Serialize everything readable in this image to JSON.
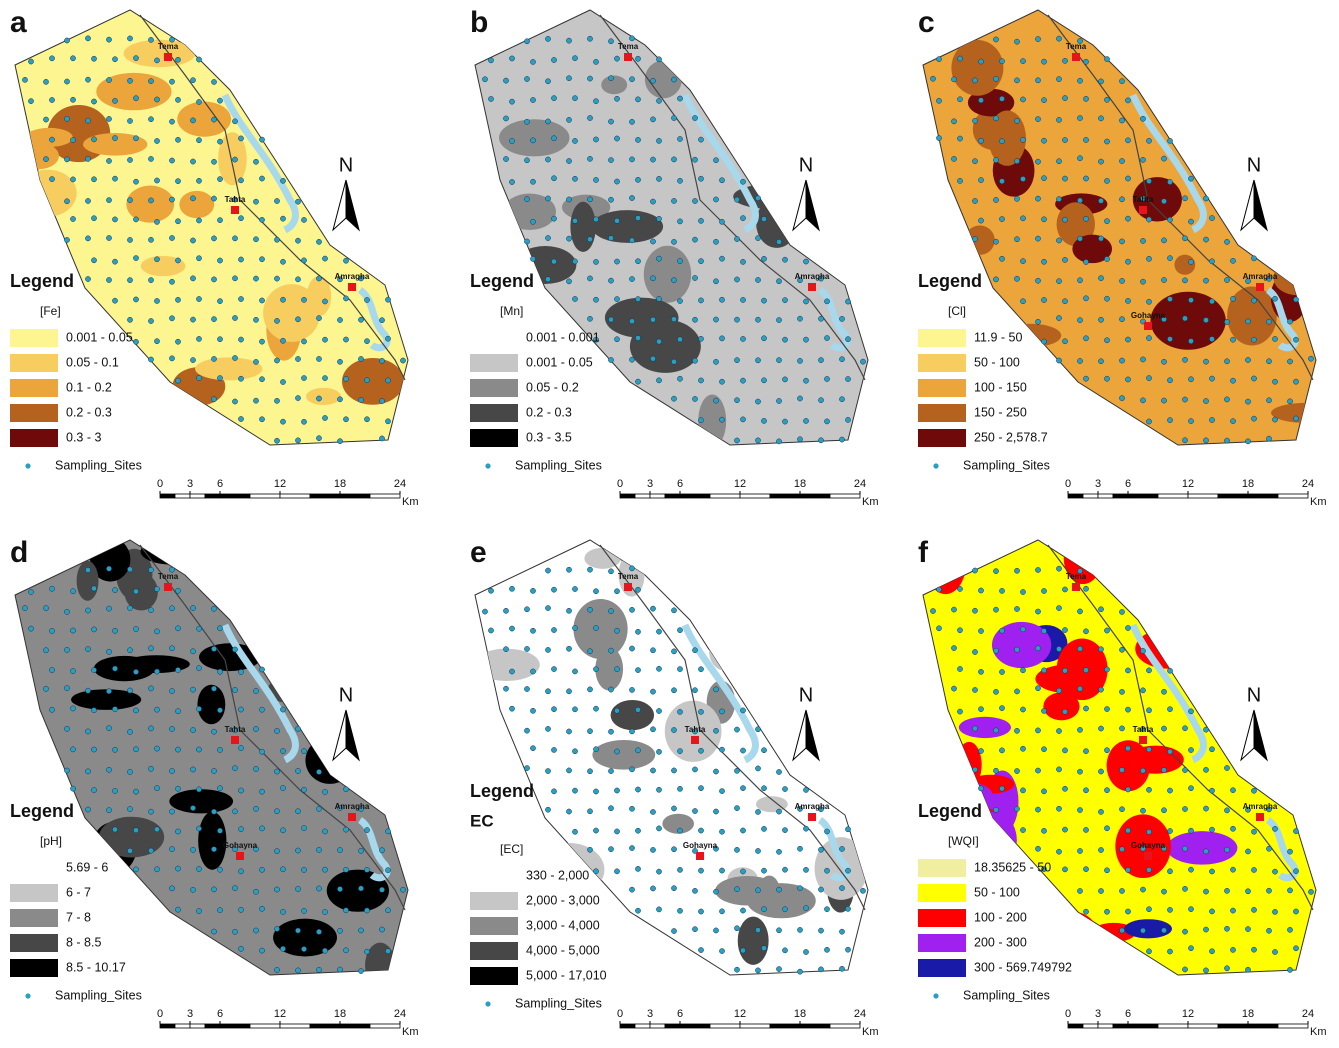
{
  "panels": [
    {
      "letter": "a",
      "legend_title": "Legend",
      "field": "[Fe]",
      "classes": [
        {
          "label": "0.001 - 0.05",
          "color": "#fdf58f"
        },
        {
          "label": "0.05 - 0.1",
          "color": "#f8cd5f"
        },
        {
          "label": "0.1 - 0.2",
          "color": "#eba53a"
        },
        {
          "label": "0.2 - 0.3",
          "color": "#b5621e"
        },
        {
          "label": "0.3 - 3",
          "color": "#6e0a0a"
        }
      ],
      "sites": "Sampling_Sites",
      "towns": [
        "Tema",
        "Tahta",
        "Amragha"
      ],
      "north": "N",
      "scale_ticks": [
        0,
        3,
        6,
        12,
        18,
        24
      ],
      "scale_unit": "Km"
    },
    {
      "letter": "b",
      "legend_title": "Legend",
      "field": "[Mn]",
      "classes": [
        {
          "label": "0.001 - 0.001",
          "color": "#ffffff"
        },
        {
          "label": "0.001 - 0.05",
          "color": "#c6c6c6"
        },
        {
          "label": "0.05 - 0.2",
          "color": "#8a8a8a"
        },
        {
          "label": "0.2 - 0.3",
          "color": "#474747"
        },
        {
          "label": "0.3 - 3.5",
          "color": "#000000"
        }
      ],
      "sites": "Sampling_Sites",
      "towns": [
        "Tema",
        "Amragha"
      ],
      "north": "N",
      "scale_ticks": [
        0,
        3,
        6,
        12,
        18,
        24
      ],
      "scale_unit": "Km"
    },
    {
      "letter": "c",
      "legend_title": "Legend",
      "field": "[Cl]",
      "classes": [
        {
          "label": "11.9 - 50",
          "color": "#fdf58f"
        },
        {
          "label": "50 - 100",
          "color": "#f8cd5f"
        },
        {
          "label": "100 - 150",
          "color": "#eba53a"
        },
        {
          "label": "150 - 250",
          "color": "#b5621e"
        },
        {
          "label": "250 - 2,578.7",
          "color": "#6e0a0a"
        }
      ],
      "sites": "Sampling_Sites",
      "towns": [
        "Tema",
        "Tahta",
        "Amragha",
        "Gohayna"
      ],
      "north": "N",
      "scale_ticks": [
        0,
        3,
        6,
        12,
        18,
        24
      ],
      "scale_unit": "Km"
    },
    {
      "letter": "d",
      "legend_title": "Legend",
      "field": "[pH]",
      "classes": [
        {
          "label": "5.69 - 6",
          "color": "#ffffff"
        },
        {
          "label": "6 - 7",
          "color": "#c6c6c6"
        },
        {
          "label": "7 - 8",
          "color": "#8a8a8a"
        },
        {
          "label": "8 - 8.5",
          "color": "#474747"
        },
        {
          "label": "8.5 - 10.17",
          "color": "#000000"
        }
      ],
      "sites": "Sampling_Sites",
      "towns": [
        "Tema",
        "Tahta",
        "Amragha",
        "Gohayna"
      ],
      "north": "N",
      "scale_ticks": [
        0,
        3,
        6,
        12,
        18,
        24
      ],
      "scale_unit": "Km"
    },
    {
      "letter": "e",
      "legend_title": "Legend",
      "subtitle": "EC",
      "field": "[EC]",
      "classes": [
        {
          "label": "330 - 2,000",
          "color": "#ffffff"
        },
        {
          "label": "2,000 - 3,000",
          "color": "#c6c6c6"
        },
        {
          "label": "3,000 - 4,000",
          "color": "#8a8a8a"
        },
        {
          "label": "4,000 - 5,000",
          "color": "#474747"
        },
        {
          "label": "5,000 - 17,010",
          "color": "#000000"
        }
      ],
      "sites": "Sampling_Sites",
      "towns": [
        "Tema",
        "Tahta",
        "Amragha",
        "Gohayna"
      ],
      "north": "N",
      "scale_ticks": [
        0,
        3,
        6,
        12,
        18,
        24
      ],
      "scale_unit": "Km"
    },
    {
      "letter": "f",
      "legend_title": "Legend",
      "field": "[WQI]",
      "classes": [
        {
          "label": "18.35625 - 50",
          "color": "#f0eea0"
        },
        {
          "label": "50 - 100",
          "color": "#ffff00"
        },
        {
          "label": "100 - 200",
          "color": "#ff0000"
        },
        {
          "label": "200 - 300",
          "color": "#a020f0"
        },
        {
          "label": "300 - 569.749792",
          "color": "#1a1aa8"
        }
      ],
      "sites": "Sampling_Sites",
      "towns": [
        "Tema",
        "Tahta",
        "Amragha",
        "Gohayna"
      ],
      "north": "N",
      "scale_ticks": [
        0,
        3,
        6,
        12,
        18,
        24
      ],
      "scale_unit": "Km"
    }
  ]
}
